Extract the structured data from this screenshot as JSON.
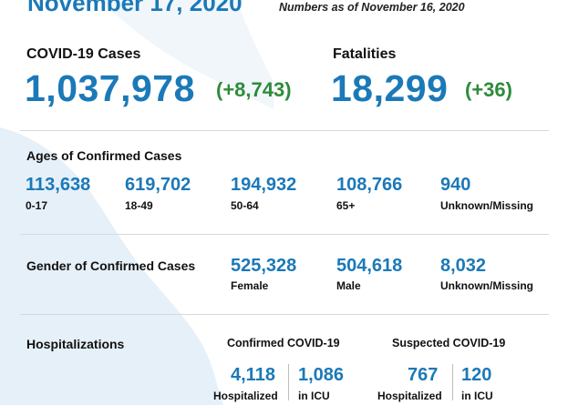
{
  "header": {
    "date": "November 17, 2020",
    "as_of": "Numbers as of November 16, 2020"
  },
  "cases": {
    "label": "COVID-19 Cases",
    "total": "1,037,978",
    "delta": "(+8,743)"
  },
  "fatalities": {
    "label": "Fatalities",
    "total": "18,299",
    "delta": "(+36)"
  },
  "ages": {
    "title": "Ages of Confirmed Cases",
    "items": [
      {
        "value": "113,638",
        "label": "0-17"
      },
      {
        "value": "619,702",
        "label": "18-49"
      },
      {
        "value": "194,932",
        "label": "50-64"
      },
      {
        "value": "108,766",
        "label": "65+"
      },
      {
        "value": "940",
        "label": "Unknown/Missing"
      }
    ]
  },
  "gender": {
    "title": "Gender of Confirmed Cases",
    "items": [
      {
        "value": "525,328",
        "label": "Female"
      },
      {
        "value": "504,618",
        "label": "Male"
      },
      {
        "value": "8,032",
        "label": "Unknown/Missing"
      }
    ]
  },
  "hospitalizations": {
    "title": "Hospitalizations",
    "confirmed": {
      "title": "Confirmed COVID-19",
      "hospitalized": {
        "value": "4,118",
        "label": "Hospitalized"
      },
      "icu": {
        "value": "1,086",
        "label": "in ICU"
      }
    },
    "suspected": {
      "title": "Suspected COVID-19",
      "hospitalized": {
        "value": "767",
        "label": "Hospitalized"
      },
      "icu": {
        "value": "120",
        "label": "in ICU"
      }
    }
  },
  "colors": {
    "accent": "#1b79b8",
    "delta": "#2e8b3a",
    "map": "#e4eff8"
  }
}
